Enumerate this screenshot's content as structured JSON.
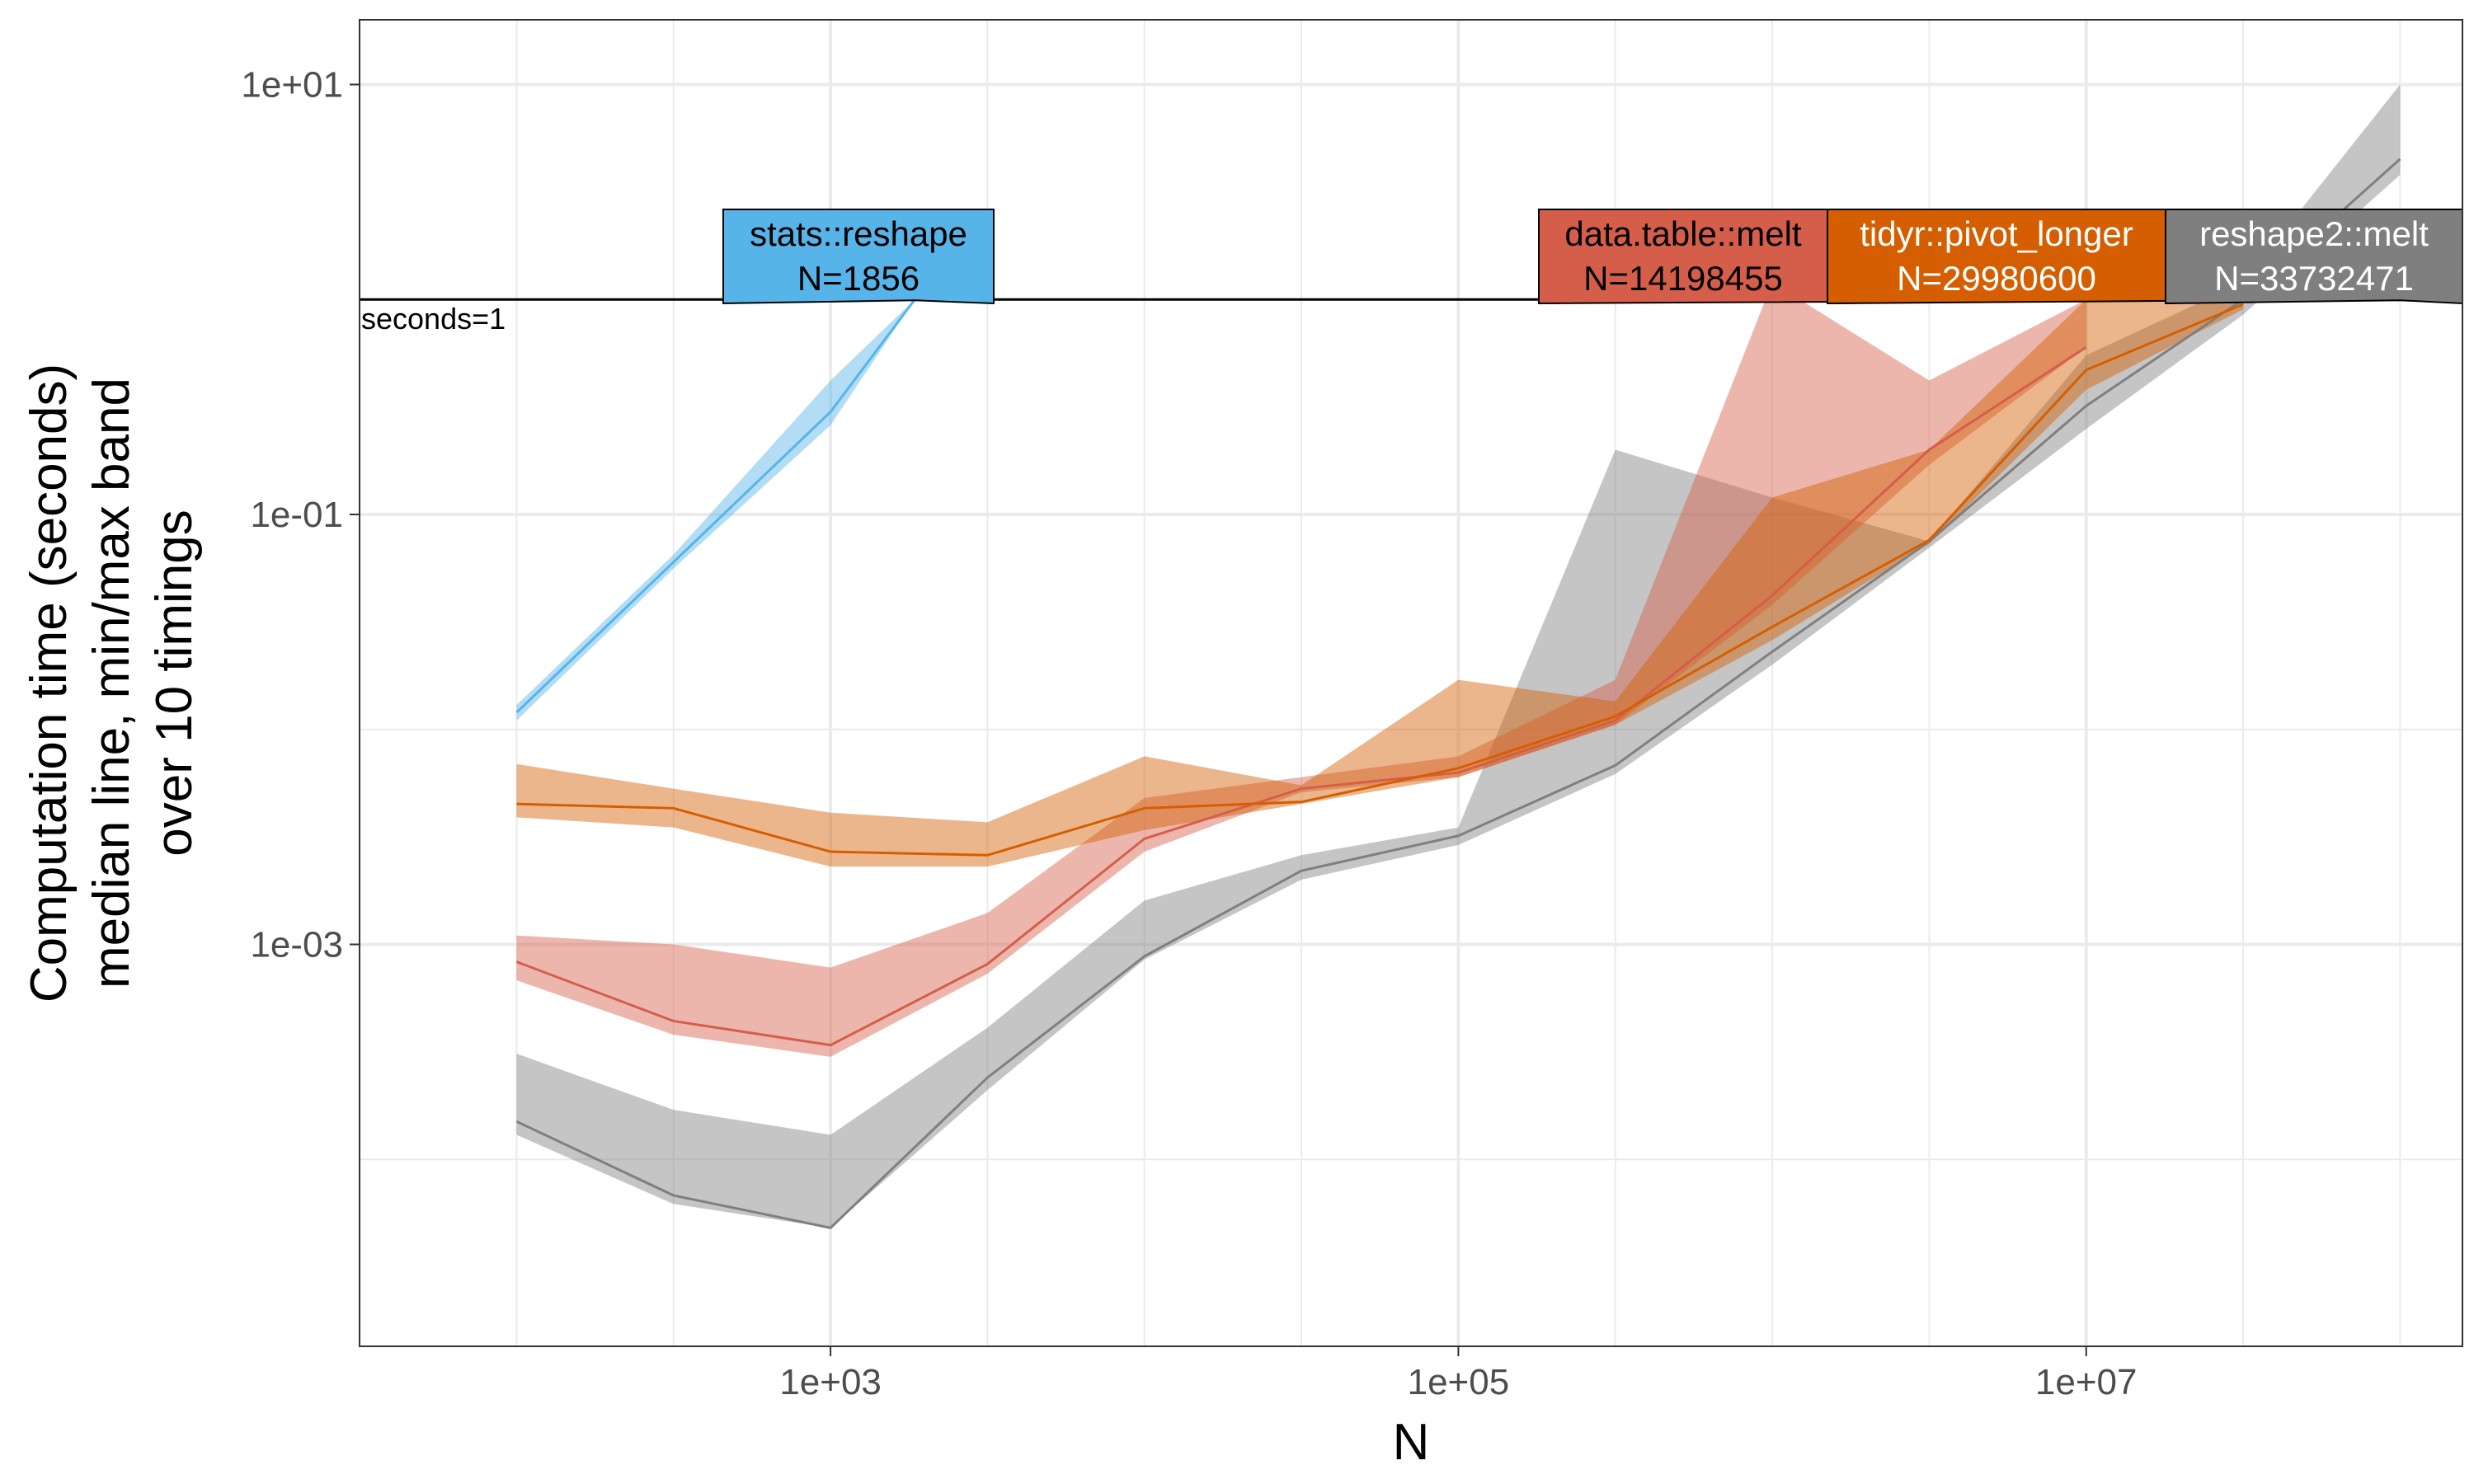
{
  "chart_data": {
    "type": "line",
    "xlabel": "N",
    "ylabel_lines": [
      "Computation time (seconds)",
      "median line, min/max band",
      "over 10 timings"
    ],
    "x_scale": "log10",
    "y_scale": "log10",
    "xlim": [
      31.6,
      158000000
    ],
    "ylim": [
      1.35e-05,
      20
    ],
    "x_ticks": [
      {
        "value": 1000,
        "label": "1e+03"
      },
      {
        "value": 100000,
        "label": "1e+05"
      },
      {
        "value": 10000000,
        "label": "1e+07"
      }
    ],
    "y_ticks": [
      {
        "value": 0.001,
        "label": "1e-03"
      },
      {
        "value": 0.1,
        "label": "1e-01"
      },
      {
        "value": 10,
        "label": "1e+01"
      }
    ],
    "grid": true,
    "reference_line": {
      "value": 1,
      "label": "seconds=1"
    },
    "series": [
      {
        "name": "reshape2::melt",
        "color": "#7f7f7f",
        "label_text_color": "#ffffff",
        "x": [
          100,
          316,
          1000,
          3162,
          10000,
          31623,
          100000,
          316228,
          1000000,
          3162278,
          10000000,
          31622777,
          100000000
        ],
        "median": [
          0.00015,
          6.8e-05,
          4.8e-05,
          0.00024,
          0.00088,
          0.0022,
          0.0032,
          0.0068,
          0.023,
          0.075,
          0.32,
          1.0,
          4.5
        ],
        "min": [
          0.00013,
          6.2e-05,
          4.8e-05,
          0.00021,
          0.00085,
          0.002,
          0.0029,
          0.0062,
          0.02,
          0.07,
          0.25,
          0.85,
          3.8
        ],
        "max": [
          0.00031,
          0.00017,
          0.00013,
          0.00041,
          0.0016,
          0.0026,
          0.0035,
          0.2,
          0.12,
          0.075,
          0.55,
          1.2,
          10
        ],
        "label": {
          "name": "reshape2::melt",
          "value_text": "N=33732471"
        }
      },
      {
        "name": "data.table::melt",
        "color": "#d55e4a",
        "label_text_color": "#000000",
        "x": [
          100,
          316,
          1000,
          3162,
          10000,
          31623,
          100000,
          316228,
          1000000,
          3162278,
          10000000
        ],
        "median": [
          0.00083,
          0.00044,
          0.00034,
          0.00081,
          0.0031,
          0.0053,
          0.0063,
          0.011,
          0.042,
          0.2,
          0.6
        ],
        "min": [
          0.00068,
          0.00038,
          0.0003,
          0.00073,
          0.0027,
          0.0051,
          0.006,
          0.0105,
          0.038,
          0.17,
          0.6
        ],
        "max": [
          0.0011,
          0.001,
          0.00078,
          0.0014,
          0.0048,
          0.006,
          0.0075,
          0.017,
          1.2,
          0.42,
          1.0
        ],
        "label": {
          "name": "data.table::melt",
          "value_text": "N=14198455"
        }
      },
      {
        "name": "tidyr::pivot_longer",
        "color": "#d55e00",
        "label_text_color": "#ffffff",
        "x": [
          100,
          316,
          1000,
          3162,
          10000,
          31623,
          100000,
          316228,
          1000000,
          3162278,
          10000000,
          31622777
        ],
        "median": [
          0.0045,
          0.0043,
          0.0027,
          0.0026,
          0.0043,
          0.0046,
          0.0066,
          0.0115,
          0.03,
          0.076,
          0.47,
          0.95
        ],
        "min": [
          0.0039,
          0.0035,
          0.0023,
          0.0023,
          0.0034,
          0.0045,
          0.006,
          0.0105,
          0.026,
          0.073,
          0.38,
          0.9
        ],
        "max": [
          0.0069,
          0.0053,
          0.0041,
          0.0037,
          0.0075,
          0.0055,
          0.017,
          0.0135,
          0.12,
          0.2,
          1.0,
          1.05
        ],
        "label": {
          "name": "tidyr::pivot_longer",
          "value_text": "N=29980600"
        }
      },
      {
        "name": "stats::reshape",
        "color": "#56b4e9",
        "label_text_color": "#000000",
        "x": [
          100,
          316,
          1000,
          1856
        ],
        "median": [
          0.012,
          0.06,
          0.3,
          1.0
        ],
        "min": [
          0.011,
          0.056,
          0.26,
          1.0
        ],
        "max": [
          0.013,
          0.065,
          0.42,
          1.0
        ],
        "label": {
          "name": "stats::reshape",
          "value_text": "N=1856"
        }
      }
    ]
  }
}
